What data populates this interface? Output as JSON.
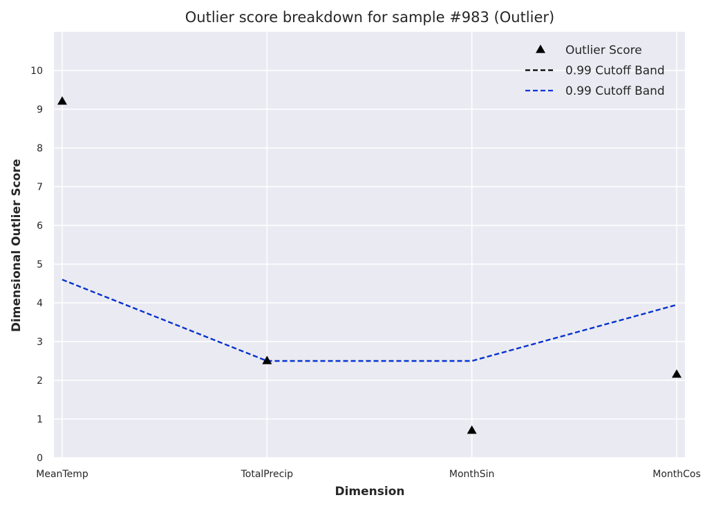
{
  "chart_data": {
    "type": "line",
    "title": "Outlier score breakdown for sample #983 (Outlier)",
    "xlabel": "Dimension",
    "ylabel": "Dimensional Outlier Score",
    "categories": [
      "MeanTemp",
      "TotalPrecip",
      "MonthSin",
      "MonthCos"
    ],
    "ylim": [
      0,
      11
    ],
    "yticks": [
      0,
      1,
      2,
      3,
      4,
      5,
      6,
      7,
      8,
      9,
      10
    ],
    "grid": true,
    "legend_position": "top-right",
    "series": [
      {
        "name": "Outlier Score",
        "kind": "scatter",
        "marker": "triangle",
        "color": "#000000",
        "values": [
          9.2,
          2.5,
          0.7,
          2.15
        ]
      },
      {
        "name": "0.99 Cutoff Band",
        "kind": "line",
        "style": "dashed",
        "color": "#000000",
        "values": [
          4.6,
          2.5,
          2.5,
          3.95
        ]
      },
      {
        "name": "0.99 Cutoff Band",
        "kind": "line",
        "style": "dashed",
        "color": "#0033dd",
        "values": [
          4.6,
          2.5,
          2.5,
          3.95
        ]
      }
    ],
    "colors": {
      "plot_background": "#eaeaf2",
      "gridline": "#ffffff"
    }
  }
}
